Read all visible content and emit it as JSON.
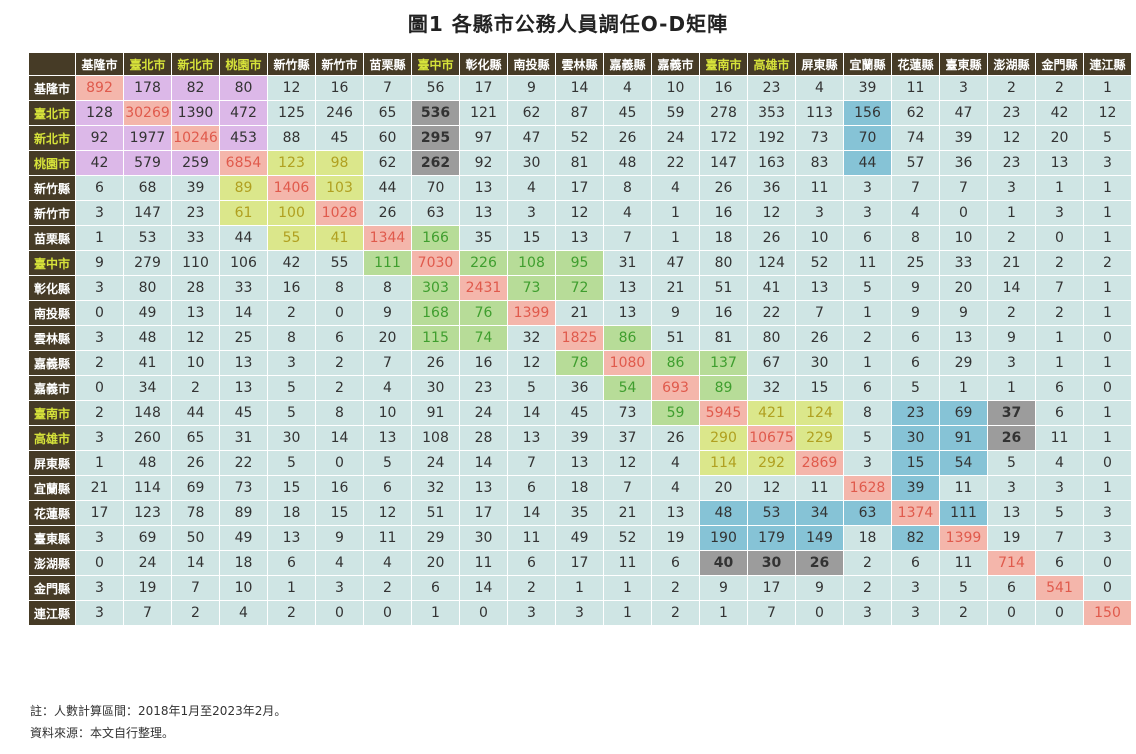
{
  "title": "圖1 各縣市公務人員調任O-D矩陣",
  "notes": [
    "註：人數計算區間：2018年1月至2023年2月。",
    "資料來源：本文自行整理。"
  ],
  "colors": {
    "header_bg": "#463b26",
    "header_highlight_text": "#d6e23a",
    "cell_default": "#cfe5e4",
    "purple": "#dcb8e8",
    "peach": "#f4b6ab",
    "yellow": "#dbe78b",
    "green": "#b7dc98",
    "blue": "#86c3d6",
    "gray": "#9c9c9c"
  },
  "chart_data": {
    "type": "heatmap",
    "title": "圖1 各縣市公務人員調任O-D矩陣",
    "columns": [
      "基隆市",
      "臺北市",
      "新北市",
      "桃園市",
      "新竹縣",
      "新竹市",
      "苗栗縣",
      "臺中市",
      "彰化縣",
      "南投縣",
      "雲林縣",
      "嘉義縣",
      "嘉義市",
      "臺南市",
      "高雄市",
      "屏東縣",
      "宜蘭縣",
      "花蓮縣",
      "臺東縣",
      "澎湖縣",
      "金門縣",
      "連江縣"
    ],
    "rows": [
      "基隆市",
      "臺北市",
      "新北市",
      "桃園市",
      "新竹縣",
      "新竹市",
      "苗栗縣",
      "臺中市",
      "彰化縣",
      "南投縣",
      "雲林縣",
      "嘉義縣",
      "嘉義市",
      "臺南市",
      "高雄市",
      "屏東縣",
      "宜蘭縣",
      "花蓮縣",
      "臺東縣",
      "澎湖縣",
      "金門縣",
      "連江縣"
    ],
    "highlighted_headers": [
      "臺北市",
      "新北市",
      "桃園市",
      "臺中市",
      "臺南市",
      "高雄市"
    ],
    "values": [
      [
        892,
        178,
        82,
        80,
        12,
        16,
        7,
        56,
        17,
        9,
        14,
        4,
        10,
        16,
        23,
        4,
        39,
        11,
        3,
        2,
        2,
        1
      ],
      [
        128,
        30269,
        1390,
        472,
        125,
        246,
        65,
        536,
        121,
        62,
        87,
        45,
        59,
        278,
        353,
        113,
        156,
        62,
        47,
        23,
        42,
        12
      ],
      [
        92,
        1977,
        10246,
        453,
        88,
        45,
        60,
        295,
        97,
        47,
        52,
        26,
        24,
        172,
        192,
        73,
        70,
        74,
        39,
        12,
        20,
        5
      ],
      [
        42,
        579,
        259,
        6854,
        123,
        98,
        62,
        262,
        92,
        30,
        81,
        48,
        22,
        147,
        163,
        83,
        44,
        57,
        36,
        23,
        13,
        3
      ],
      [
        6,
        68,
        39,
        89,
        1406,
        103,
        44,
        70,
        13,
        4,
        17,
        8,
        4,
        26,
        36,
        11,
        3,
        7,
        7,
        3,
        1,
        1
      ],
      [
        3,
        147,
        23,
        61,
        100,
        1028,
        26,
        63,
        13,
        3,
        12,
        4,
        1,
        16,
        12,
        3,
        3,
        4,
        0,
        1,
        3,
        1
      ],
      [
        1,
        53,
        33,
        44,
        55,
        41,
        1344,
        166,
        35,
        15,
        13,
        7,
        1,
        18,
        26,
        10,
        6,
        8,
        10,
        2,
        0,
        1
      ],
      [
        9,
        279,
        110,
        106,
        42,
        55,
        111,
        7030,
        226,
        108,
        95,
        31,
        47,
        80,
        124,
        52,
        11,
        25,
        33,
        21,
        2,
        2
      ],
      [
        3,
        80,
        28,
        33,
        16,
        8,
        8,
        303,
        2431,
        73,
        72,
        13,
        21,
        51,
        41,
        13,
        5,
        9,
        20,
        14,
        7,
        1
      ],
      [
        0,
        49,
        13,
        14,
        2,
        0,
        9,
        168,
        76,
        1399,
        21,
        13,
        9,
        16,
        22,
        7,
        1,
        9,
        9,
        2,
        2,
        1
      ],
      [
        3,
        48,
        12,
        25,
        8,
        6,
        20,
        115,
        74,
        32,
        1825,
        86,
        51,
        81,
        80,
        26,
        2,
        6,
        13,
        9,
        1,
        0
      ],
      [
        2,
        41,
        10,
        13,
        3,
        2,
        7,
        26,
        16,
        12,
        78,
        1080,
        86,
        137,
        67,
        30,
        1,
        6,
        29,
        3,
        1,
        1
      ],
      [
        0,
        34,
        2,
        13,
        5,
        2,
        4,
        30,
        23,
        5,
        36,
        54,
        693,
        89,
        32,
        15,
        6,
        5,
        1,
        1,
        6,
        0
      ],
      [
        2,
        148,
        44,
        45,
        5,
        8,
        10,
        91,
        24,
        14,
        45,
        73,
        59,
        5945,
        421,
        124,
        8,
        23,
        69,
        37,
        6,
        1
      ],
      [
        3,
        260,
        65,
        31,
        30,
        14,
        13,
        108,
        28,
        13,
        39,
        37,
        26,
        290,
        10675,
        229,
        5,
        30,
        91,
        26,
        11,
        1
      ],
      [
        1,
        48,
        26,
        22,
        5,
        0,
        5,
        24,
        14,
        7,
        13,
        12,
        4,
        114,
        292,
        2869,
        3,
        15,
        54,
        5,
        4,
        0
      ],
      [
        21,
        114,
        69,
        73,
        15,
        16,
        6,
        32,
        13,
        6,
        18,
        7,
        4,
        20,
        12,
        11,
        1628,
        39,
        11,
        3,
        3,
        1
      ],
      [
        17,
        123,
        78,
        89,
        18,
        15,
        12,
        51,
        17,
        14,
        35,
        21,
        13,
        48,
        53,
        34,
        63,
        1374,
        111,
        13,
        5,
        3
      ],
      [
        3,
        69,
        50,
        49,
        13,
        9,
        11,
        29,
        30,
        11,
        49,
        52,
        19,
        190,
        179,
        149,
        18,
        82,
        1399,
        19,
        7,
        3
      ],
      [
        0,
        24,
        14,
        18,
        6,
        4,
        4,
        20,
        11,
        6,
        17,
        11,
        6,
        40,
        30,
        26,
        2,
        6,
        11,
        714,
        6,
        0
      ],
      [
        3,
        19,
        7,
        10,
        1,
        3,
        2,
        6,
        14,
        2,
        1,
        1,
        2,
        9,
        17,
        9,
        2,
        3,
        5,
        6,
        541,
        0
      ],
      [
        3,
        7,
        2,
        4,
        2,
        0,
        0,
        1,
        0,
        3,
        3,
        1,
        2,
        1,
        7,
        0,
        3,
        3,
        2,
        0,
        0,
        150
      ]
    ],
    "cell_styles": {
      "purple": [
        [
          0,
          1
        ],
        [
          0,
          2
        ],
        [
          0,
          3
        ],
        [
          1,
          0
        ],
        [
          1,
          2
        ],
        [
          1,
          3
        ],
        [
          2,
          0
        ],
        [
          2,
          1
        ],
        [
          2,
          3
        ],
        [
          3,
          0
        ],
        [
          3,
          1
        ],
        [
          3,
          2
        ]
      ],
      "peach": [
        [
          0,
          0
        ],
        [
          1,
          1
        ],
        [
          2,
          2
        ],
        [
          3,
          3
        ],
        [
          4,
          4
        ],
        [
          5,
          5
        ],
        [
          6,
          6
        ],
        [
          7,
          7
        ],
        [
          8,
          8
        ],
        [
          9,
          9
        ],
        [
          10,
          10
        ],
        [
          11,
          11
        ],
        [
          12,
          12
        ],
        [
          13,
          13
        ],
        [
          14,
          14
        ],
        [
          15,
          15
        ],
        [
          16,
          16
        ],
        [
          17,
          17
        ],
        [
          18,
          18
        ],
        [
          19,
          19
        ],
        [
          20,
          20
        ],
        [
          21,
          21
        ]
      ],
      "yellow": [
        [
          3,
          4
        ],
        [
          3,
          5
        ],
        [
          4,
          3
        ],
        [
          4,
          5
        ],
        [
          5,
          3
        ],
        [
          5,
          4
        ],
        [
          6,
          4
        ],
        [
          6,
          5
        ],
        [
          14,
          15
        ],
        [
          15,
          13
        ],
        [
          15,
          14
        ],
        [
          13,
          14
        ],
        [
          13,
          15
        ],
        [
          14,
          13
        ]
      ],
      "green": [
        [
          6,
          7
        ],
        [
          7,
          6
        ],
        [
          7,
          8
        ],
        [
          7,
          9
        ],
        [
          7,
          10
        ],
        [
          8,
          7
        ],
        [
          8,
          9
        ],
        [
          8,
          10
        ],
        [
          9,
          7
        ],
        [
          9,
          8
        ],
        [
          10,
          7
        ],
        [
          10,
          8
        ],
        [
          10,
          11
        ],
        [
          11,
          10
        ],
        [
          11,
          12
        ],
        [
          12,
          11
        ],
        [
          12,
          13
        ],
        [
          11,
          13
        ],
        [
          13,
          12
        ]
      ],
      "blue": [
        [
          1,
          16
        ],
        [
          2,
          16
        ],
        [
          3,
          16
        ],
        [
          13,
          17
        ],
        [
          13,
          18
        ],
        [
          14,
          17
        ],
        [
          14,
          18
        ],
        [
          15,
          17
        ],
        [
          15,
          18
        ],
        [
          17,
          13
        ],
        [
          17,
          14
        ],
        [
          17,
          15
        ],
        [
          17,
          16
        ],
        [
          18,
          13
        ],
        [
          18,
          14
        ],
        [
          18,
          15
        ],
        [
          18,
          17
        ],
        [
          16,
          17
        ],
        [
          17,
          18
        ]
      ],
      "gray": [
        [
          1,
          7
        ],
        [
          2,
          7
        ],
        [
          3,
          7
        ],
        [
          13,
          19
        ],
        [
          14,
          19
        ],
        [
          19,
          13
        ],
        [
          19,
          14
        ],
        [
          19,
          15
        ]
      ]
    }
  }
}
